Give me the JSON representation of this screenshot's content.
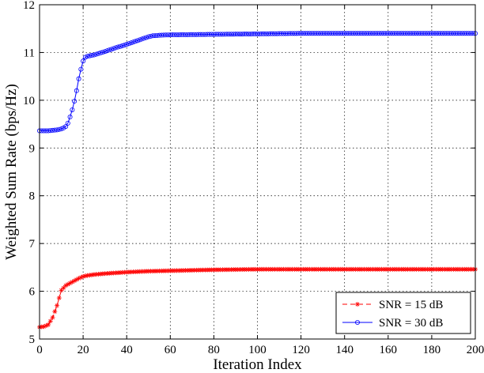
{
  "chart_data": {
    "type": "line",
    "title": "",
    "xlabel": "Iteration Index",
    "ylabel": "Weighted Sum Rate (bps/Hz)",
    "xlim": [
      0,
      200
    ],
    "ylim": [
      5,
      12
    ],
    "xticks": [
      0,
      20,
      40,
      60,
      80,
      100,
      120,
      140,
      160,
      180,
      200
    ],
    "yticks": [
      5,
      6,
      7,
      8,
      9,
      10,
      11,
      12
    ],
    "grid": true,
    "legend_position": "bottom-right",
    "series": [
      {
        "name": "SNR = 15 dB",
        "color": "#ff0000",
        "line_style": "dashed",
        "marker": "asterisk",
        "points": [
          [
            0,
            5.25
          ],
          [
            2,
            5.26
          ],
          [
            4,
            5.3
          ],
          [
            6,
            5.45
          ],
          [
            8,
            5.7
          ],
          [
            10,
            6.02
          ],
          [
            12,
            6.12
          ],
          [
            14,
            6.17
          ],
          [
            16,
            6.22
          ],
          [
            18,
            6.27
          ],
          [
            20,
            6.31
          ],
          [
            22,
            6.33
          ],
          [
            25,
            6.35
          ],
          [
            30,
            6.37
          ],
          [
            40,
            6.4
          ],
          [
            50,
            6.42
          ],
          [
            60,
            6.43
          ],
          [
            70,
            6.44
          ],
          [
            80,
            6.45
          ],
          [
            100,
            6.46
          ],
          [
            120,
            6.46
          ],
          [
            150,
            6.46
          ],
          [
            180,
            6.46
          ],
          [
            200,
            6.46
          ]
        ]
      },
      {
        "name": "SNR = 30 dB",
        "color": "#0000ff",
        "line_style": "solid",
        "marker": "circle",
        "points": [
          [
            0,
            9.36
          ],
          [
            4,
            9.36
          ],
          [
            8,
            9.38
          ],
          [
            10,
            9.4
          ],
          [
            11,
            9.42
          ],
          [
            12,
            9.45
          ],
          [
            13,
            9.52
          ],
          [
            14,
            9.65
          ],
          [
            15,
            9.8
          ],
          [
            16,
            9.98
          ],
          [
            17,
            10.2
          ],
          [
            18,
            10.45
          ],
          [
            19,
            10.65
          ],
          [
            20,
            10.82
          ],
          [
            21,
            10.9
          ],
          [
            22,
            10.92
          ],
          [
            25,
            10.95
          ],
          [
            30,
            11.02
          ],
          [
            35,
            11.1
          ],
          [
            40,
            11.17
          ],
          [
            45,
            11.25
          ],
          [
            50,
            11.33
          ],
          [
            52,
            11.35
          ],
          [
            55,
            11.36
          ],
          [
            60,
            11.37
          ],
          [
            80,
            11.38
          ],
          [
            100,
            11.39
          ],
          [
            120,
            11.4
          ],
          [
            150,
            11.4
          ],
          [
            180,
            11.4
          ],
          [
            200,
            11.4
          ]
        ]
      }
    ]
  }
}
